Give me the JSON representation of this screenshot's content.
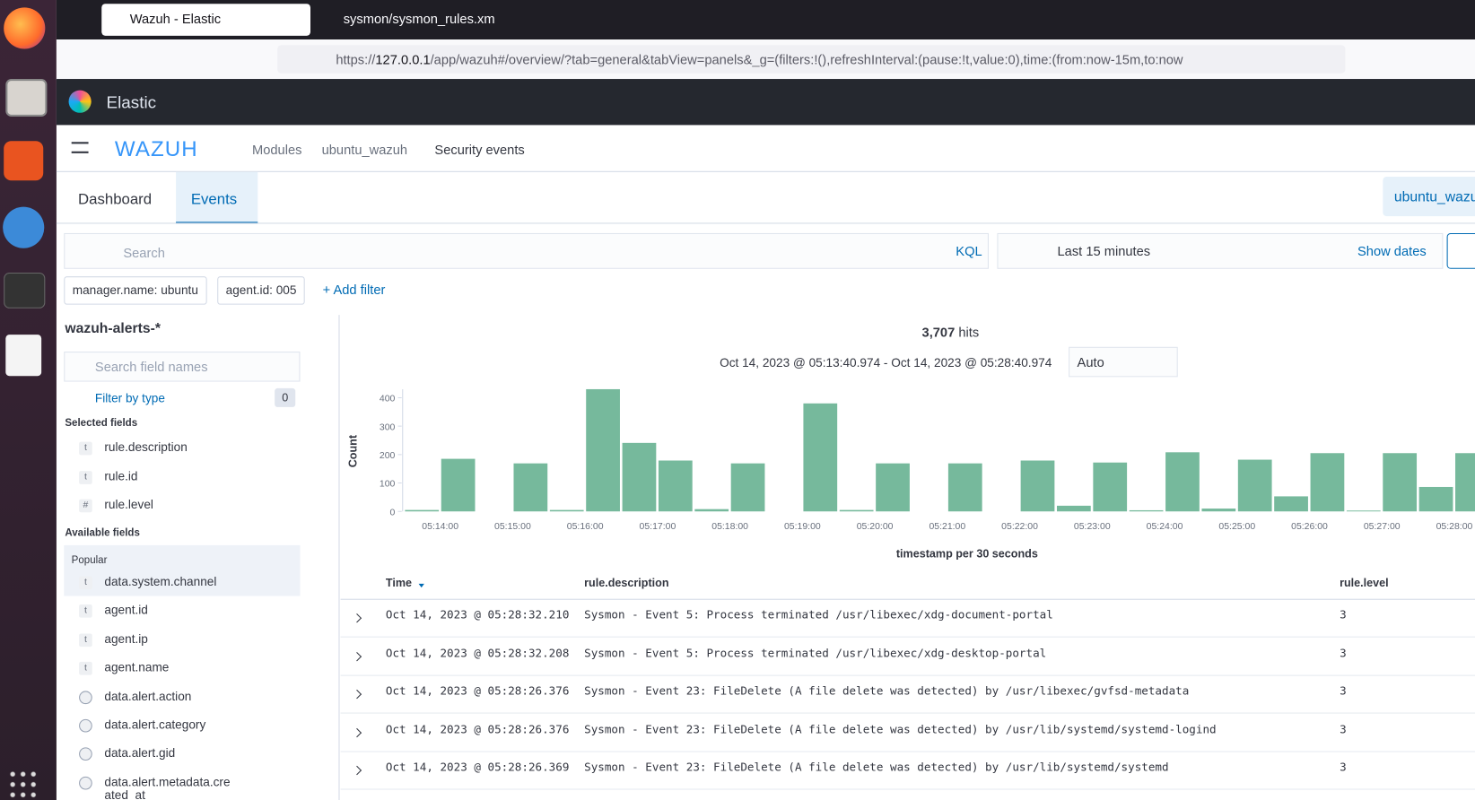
{
  "browser": {
    "tabs": [
      "Wazuh - Elastic",
      "sysmon/sysmon_rules.xm"
    ],
    "url_scheme": "https://",
    "url_host": "127.0.0.1",
    "url_path": "/app/wazuh#/overview/?tab=general&tabView=panels&_g=(filters:!(),refreshInterval:(pause:!t,value:0),time:(from:now-15m,to:now"
  },
  "header": {
    "app": "Elastic"
  },
  "breadcrumb": {
    "logo": "WAZUH",
    "items": [
      "Modules",
      "ubuntu_wazuh",
      "Security events"
    ]
  },
  "tabs": [
    "Dashboard",
    "Events"
  ],
  "agent_button": "ubuntu_wazu",
  "query": {
    "search_placeholder": "Search",
    "language": "KQL",
    "time": "Last 15 minutes",
    "show_dates": "Show dates"
  },
  "filters": [
    "manager.name: ubuntu",
    "agent.id: 005"
  ],
  "add_filter": "+ Add filter",
  "sidebar": {
    "index": "wazuh-alerts-*",
    "search_placeholder": "Search field names",
    "filter_by_type": "Filter by type",
    "filter_count": 0,
    "selected_title": "Selected fields",
    "selected_fields": [
      {
        "icon": "t",
        "name": "rule.description"
      },
      {
        "icon": "t",
        "name": "rule.id"
      },
      {
        "icon": "#",
        "name": "rule.level"
      }
    ],
    "available_title": "Available fields",
    "popular_title": "Popular",
    "available_fields": [
      {
        "icon": "t",
        "name": "data.system.channel"
      },
      {
        "icon": "t",
        "name": "agent.id"
      },
      {
        "icon": "t",
        "name": "agent.ip"
      },
      {
        "icon": "t",
        "name": "agent.name"
      },
      {
        "name": "data.alert.action"
      },
      {
        "name": "data.alert.category"
      },
      {
        "name": "data.alert.gid"
      },
      {
        "name": "data.alert.metadata.created_at"
      }
    ]
  },
  "hits": {
    "count": "3,707",
    "label": "hits",
    "range": "Oct 14, 2023 @ 05:13:40.974 - Oct 14, 2023 @ 05:28:40.974",
    "interval": "Auto"
  },
  "chart_data": {
    "type": "bar",
    "ylabel": "Count",
    "xlabel": "timestamp per 30 seconds",
    "color": "#76b99c",
    "categories": [
      null,
      "05:14:00",
      null,
      "05:15:00",
      null,
      "05:16:00",
      null,
      "05:17:00",
      null,
      "05:18:00",
      null,
      "05:19:00",
      null,
      "05:20:00",
      null,
      "05:21:00",
      null,
      "05:22:00",
      null,
      "05:23:00",
      null,
      "05:24:00",
      null,
      "05:25:00",
      null,
      "05:26:00",
      null,
      "05:27:00",
      null,
      "05:28:00"
    ],
    "values": [
      5,
      185,
      0,
      169,
      5,
      430,
      241,
      179,
      8,
      169,
      0,
      380,
      5,
      169,
      0,
      169,
      0,
      179,
      20,
      172,
      4,
      208,
      10,
      182,
      53,
      205,
      3,
      205,
      86,
      205
    ],
    "ylim": [
      0,
      430
    ],
    "yticks": [
      0,
      100,
      200,
      300,
      400
    ]
  },
  "table": {
    "columns": [
      "Time",
      "rule.description",
      "rule.level"
    ],
    "rows": [
      [
        "Oct 14, 2023 @ 05:28:32.210",
        "Sysmon - Event 5: Process terminated /usr/libexec/xdg-document-portal",
        3
      ],
      [
        "Oct 14, 2023 @ 05:28:32.208",
        "Sysmon - Event 5: Process terminated /usr/libexec/xdg-desktop-portal",
        3
      ],
      [
        "Oct 14, 2023 @ 05:28:26.376",
        "Sysmon - Event 23: FileDelete (A file delete was detected) by /usr/libexec/gvfsd-metadata",
        3
      ],
      [
        "Oct 14, 2023 @ 05:28:26.376",
        "Sysmon - Event 23: FileDelete (A file delete was detected) by /usr/lib/systemd/systemd-logind",
        3
      ],
      [
        "Oct 14, 2023 @ 05:28:26.369",
        "Sysmon - Event 23: FileDelete (A file delete was detected) by /usr/lib/systemd/systemd",
        3
      ]
    ]
  }
}
